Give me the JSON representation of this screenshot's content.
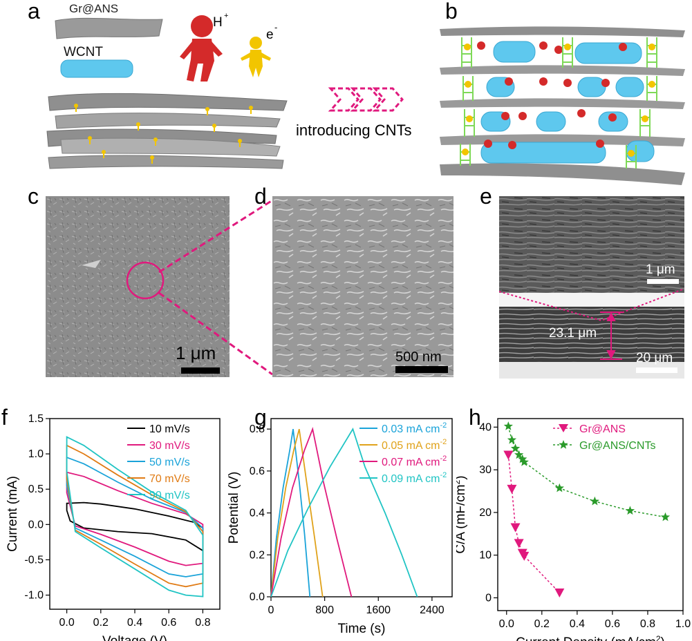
{
  "panels": {
    "a": {
      "letter": "a",
      "sheet_label": "Gr@ANS",
      "tube_label": "WCNT",
      "proton_label": "H",
      "proton_sup": "+",
      "electron_label": "e",
      "electron_sup": "-",
      "colors": {
        "proton": "#d42a2a",
        "electron": "#f2c500",
        "sheet": "#9a9a9a",
        "tube": "#5ec8ee"
      }
    },
    "arrow_caption": "introducing CNTs",
    "b": {
      "letter": "b",
      "colors": {
        "ladder": "#7ed957"
      }
    },
    "c": {
      "letter": "c",
      "scalebar": "1 μm"
    },
    "d": {
      "letter": "d",
      "scalebar": "500 nm"
    },
    "e": {
      "letter": "e",
      "scalebar_top": "1 μm",
      "scalebar_bottom": "20 μm",
      "thickness": "23.1 μm"
    }
  },
  "chart_data": [
    {
      "panel": "f",
      "type": "line",
      "xlabel": "Voltage (V)",
      "ylabel": "Current (mA)",
      "xlim": [
        -0.1,
        0.9
      ],
      "ylim": [
        -1.2,
        1.5
      ],
      "xticks": [
        "0.0",
        "0.2",
        "0.4",
        "0.6",
        "0.8"
      ],
      "yticks": [
        "-1.0",
        "-0.5",
        "0.0",
        "0.5",
        "1.0",
        "1.5"
      ],
      "legend": "top-right",
      "series": [
        {
          "name": "10 mV/s",
          "color": "#000000",
          "upper": [
            [
              0.0,
              0.3
            ],
            [
              0.1,
              0.31
            ],
            [
              0.2,
              0.29
            ],
            [
              0.4,
              0.22
            ],
            [
              0.6,
              0.12
            ],
            [
              0.75,
              0.03
            ],
            [
              0.8,
              -0.05
            ]
          ],
          "lower": [
            [
              0.8,
              -0.37
            ],
            [
              0.7,
              -0.22
            ],
            [
              0.5,
              -0.13
            ],
            [
              0.3,
              -0.1
            ],
            [
              0.1,
              -0.05
            ],
            [
              0.02,
              0.05
            ],
            [
              0.0,
              0.2
            ]
          ]
        },
        {
          "name": "30 mV/s",
          "color": "#e0197d",
          "upper": [
            [
              0.0,
              0.74
            ],
            [
              0.1,
              0.68
            ],
            [
              0.3,
              0.48
            ],
            [
              0.5,
              0.3
            ],
            [
              0.7,
              0.15
            ],
            [
              0.8,
              0.0
            ]
          ],
          "lower": [
            [
              0.8,
              -0.55
            ],
            [
              0.7,
              -0.58
            ],
            [
              0.6,
              -0.52
            ],
            [
              0.4,
              -0.32
            ],
            [
              0.2,
              -0.14
            ],
            [
              0.05,
              -0.02
            ],
            [
              0.0,
              0.45
            ]
          ]
        },
        {
          "name": "50 mV/s",
          "color": "#1aa3d9",
          "upper": [
            [
              0.0,
              0.95
            ],
            [
              0.1,
              0.86
            ],
            [
              0.3,
              0.6
            ],
            [
              0.5,
              0.36
            ],
            [
              0.7,
              0.17
            ],
            [
              0.8,
              -0.05
            ]
          ],
          "lower": [
            [
              0.8,
              -0.7
            ],
            [
              0.7,
              -0.74
            ],
            [
              0.6,
              -0.7
            ],
            [
              0.4,
              -0.45
            ],
            [
              0.2,
              -0.22
            ],
            [
              0.05,
              -0.05
            ],
            [
              0.0,
              0.55
            ]
          ]
        },
        {
          "name": "70 mV/s",
          "color": "#e07b14",
          "upper": [
            [
              0.0,
              1.12
            ],
            [
              0.1,
              1.0
            ],
            [
              0.3,
              0.7
            ],
            [
              0.5,
              0.42
            ],
            [
              0.7,
              0.18
            ],
            [
              0.8,
              -0.1
            ]
          ],
          "lower": [
            [
              0.8,
              -0.83
            ],
            [
              0.7,
              -0.88
            ],
            [
              0.6,
              -0.83
            ],
            [
              0.4,
              -0.56
            ],
            [
              0.2,
              -0.28
            ],
            [
              0.05,
              -0.08
            ],
            [
              0.0,
              0.65
            ]
          ]
        },
        {
          "name": "90 mV/s",
          "color": "#20c4c4",
          "upper": [
            [
              0.0,
              1.24
            ],
            [
              0.1,
              1.12
            ],
            [
              0.3,
              0.78
            ],
            [
              0.5,
              0.46
            ],
            [
              0.7,
              0.2
            ],
            [
              0.8,
              -0.15
            ]
          ],
          "lower": [
            [
              0.8,
              -1.02
            ],
            [
              0.7,
              -1.0
            ],
            [
              0.6,
              -0.93
            ],
            [
              0.4,
              -0.63
            ],
            [
              0.2,
              -0.33
            ],
            [
              0.05,
              -0.1
            ],
            [
              0.0,
              0.75
            ]
          ]
        }
      ]
    },
    {
      "panel": "g",
      "type": "line",
      "xlabel": "Time (s)",
      "ylabel": "Potential (V)",
      "xlim": [
        0,
        2700
      ],
      "ylim": [
        0,
        0.85
      ],
      "xticks": [
        "0",
        "800",
        "1600",
        "2400"
      ],
      "yticks": [
        "0.0",
        "0.2",
        "0.4",
        "0.6",
        "0.8"
      ],
      "legend": "top-right",
      "series": [
        {
          "name": "0.03 mA cm",
          "unit_sup": "-2",
          "color": "#1aa3d9",
          "points": [
            [
              0,
              0
            ],
            [
              80,
              0.28
            ],
            [
              180,
              0.52
            ],
            [
              280,
              0.7
            ],
            [
              330,
              0.8
            ],
            [
              420,
              0.55
            ],
            [
              500,
              0.3
            ],
            [
              580,
              0.0
            ]
          ]
        },
        {
          "name": "0.05 mA cm",
          "unit_sup": "-2",
          "color": "#e0a21a",
          "points": [
            [
              0,
              0
            ],
            [
              100,
              0.28
            ],
            [
              220,
              0.52
            ],
            [
              340,
              0.7
            ],
            [
              420,
              0.8
            ],
            [
              530,
              0.55
            ],
            [
              650,
              0.28
            ],
            [
              770,
              0.0
            ]
          ]
        },
        {
          "name": "0.07 mA cm",
          "unit_sup": "-2",
          "color": "#e0197d",
          "points": [
            [
              0,
              0
            ],
            [
              150,
              0.28
            ],
            [
              320,
              0.52
            ],
            [
              500,
              0.7
            ],
            [
              620,
              0.8
            ],
            [
              780,
              0.55
            ],
            [
              980,
              0.28
            ],
            [
              1200,
              0.0
            ]
          ]
        },
        {
          "name": "0.09 mA cm",
          "unit_sup": "-2",
          "color": "#20c4c4",
          "points": [
            [
              0,
              0
            ],
            [
              250,
              0.22
            ],
            [
              550,
              0.42
            ],
            [
              880,
              0.62
            ],
            [
              1220,
              0.8
            ],
            [
              1400,
              0.62
            ],
            [
              1700,
              0.4
            ],
            [
              1950,
              0.2
            ],
            [
              2180,
              0.0
            ]
          ]
        }
      ]
    },
    {
      "panel": "h",
      "type": "scatter",
      "xlabel": "Current Density (mA/cm",
      "xlabel_sup": "2",
      "xlabel_end": ")",
      "ylabel": "C/A (mF/cm",
      "ylabel_sup": "2",
      "ylabel_end": ")",
      "xlim": [
        -0.05,
        1.0
      ],
      "ylim": [
        -3,
        42
      ],
      "xticks": [
        "0.0",
        "0.2",
        "0.4",
        "0.6",
        "0.8",
        "1.0"
      ],
      "yticks": [
        "0",
        "10",
        "20",
        "30",
        "40"
      ],
      "legend": "top-right",
      "series": [
        {
          "name": "Gr@ANS",
          "color": "#e0197d",
          "marker": "triangle-down",
          "x": [
            0.01,
            0.03,
            0.05,
            0.07,
            0.09,
            0.1,
            0.3
          ],
          "y": [
            33.5,
            25.5,
            16.5,
            12.8,
            10.5,
            9.8,
            1.2
          ]
        },
        {
          "name": "Gr@ANS/CNTs",
          "color": "#2a9a2a",
          "marker": "star",
          "x": [
            0.01,
            0.03,
            0.05,
            0.07,
            0.09,
            0.1,
            0.3,
            0.5,
            0.7,
            0.9
          ],
          "y": [
            40.2,
            37.0,
            35.0,
            33.5,
            32.5,
            31.8,
            25.7,
            22.6,
            20.4,
            18.9
          ]
        }
      ]
    }
  ]
}
